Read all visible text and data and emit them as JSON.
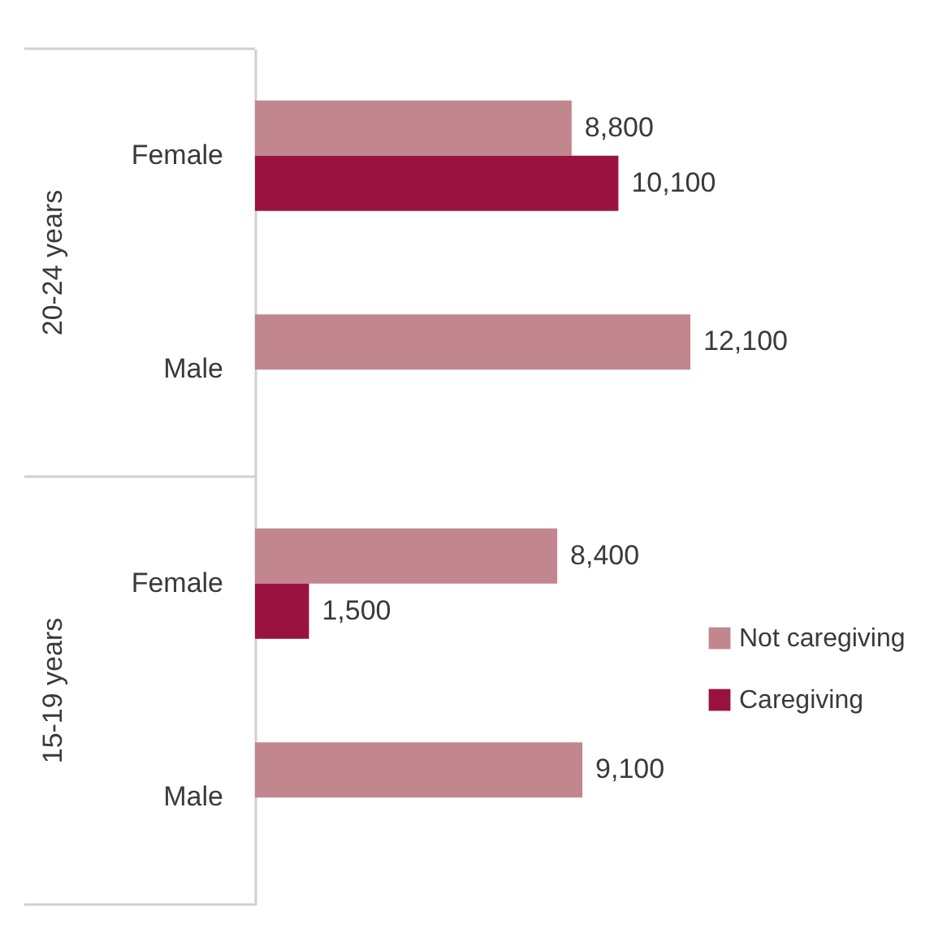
{
  "chart_data": {
    "type": "bar",
    "orientation": "horizontal",
    "categories": [
      "Female",
      "Male",
      "Female",
      "Male"
    ],
    "series": [
      {
        "name": "Not caregiving",
        "color": "#c2868f",
        "values": [
          8800,
          12100,
          8400,
          9100
        ],
        "value_labels": [
          "8,800",
          "12,100",
          "8,400",
          "9,100"
        ]
      },
      {
        "name": "Caregiving",
        "color": "#9a1240",
        "values": [
          10100,
          null,
          1500,
          null
        ],
        "value_labels": [
          "10,100",
          null,
          "1,500",
          null
        ]
      }
    ],
    "legend": "bottom right",
    "annotations": [
      "20-24 years",
      "15-19 years"
    ]
  }
}
